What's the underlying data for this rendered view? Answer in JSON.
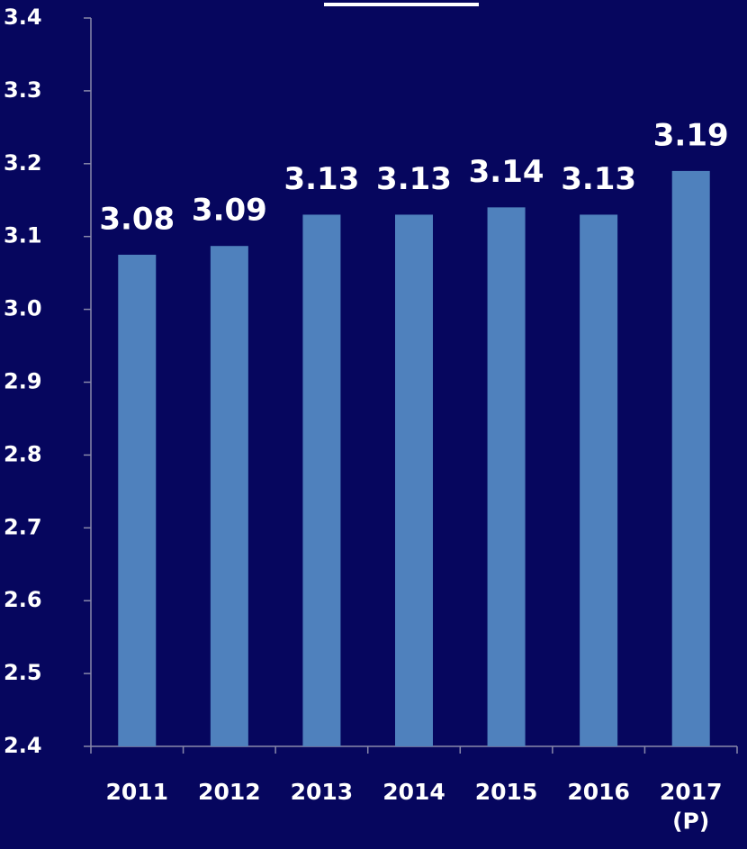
{
  "chart_data": {
    "type": "bar",
    "categories": [
      "2011",
      "2012",
      "2013",
      "2014",
      "2015",
      "2016",
      "2017\n(P)"
    ],
    "values": [
      3.075,
      3.087,
      3.13,
      3.13,
      3.14,
      3.13,
      3.19
    ],
    "value_labels": [
      "3.08",
      "3.09",
      "3.13",
      "3.13",
      "3.14",
      "3.13",
      "3.19"
    ],
    "color": "#4f81bd",
    "ylim": [
      2.4,
      3.4
    ],
    "yticks": [
      2.4,
      2.5,
      2.6,
      2.7,
      2.8,
      2.9,
      {
        "value": 3,
        "label": "3.0"
      },
      3.1,
      3.2,
      3.3,
      3.4
    ],
    "grid": false
  }
}
